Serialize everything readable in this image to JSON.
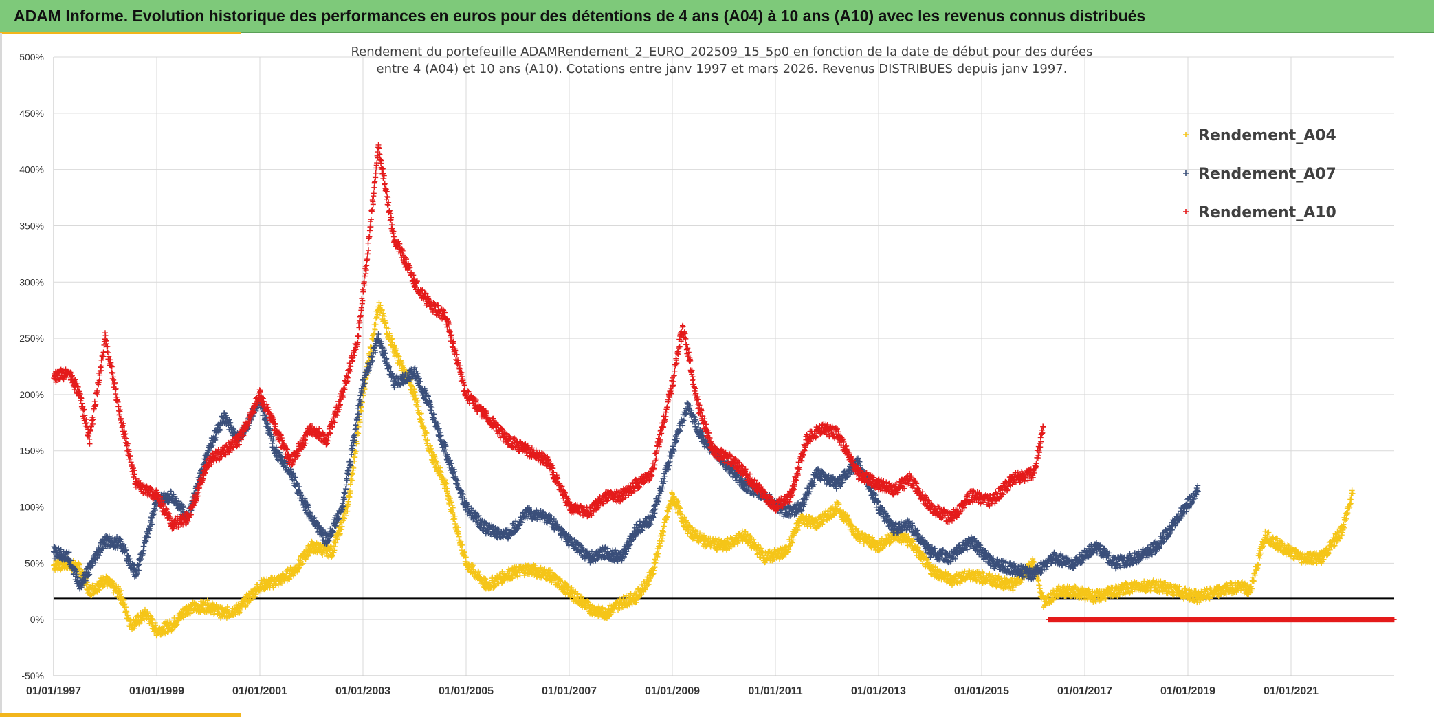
{
  "header": {
    "title": "ADAM Informe. Evolution historique des performances en euros pour des détentions de 4 ans (A04) à 10 ans (A10) avec les revenus connus distribués"
  },
  "chart_data": {
    "type": "scatter",
    "title_lines": [
      "Rendement du portefeuille ADAMRendement_2_EURO_202509_15_5p0  en fonction de la date de début pour des durées",
      "entre 4 (A04) et 10 ans (A10). Cotations entre janv 1997 et mars 2026. Revenus DISTRIBUES depuis janv 1997."
    ],
    "xlabel": "",
    "ylabel": "",
    "xlim": [
      1997.0,
      2023.0
    ],
    "ylim": [
      -50,
      500
    ],
    "y_ticks": [
      -50,
      0,
      50,
      100,
      150,
      200,
      250,
      300,
      350,
      400,
      450,
      500
    ],
    "y_tick_suffix": "%",
    "x_ticks": [
      {
        "value": 1997,
        "label": "01/01/1997"
      },
      {
        "value": 1999,
        "label": "01/01/1999"
      },
      {
        "value": 2001,
        "label": "01/01/2001"
      },
      {
        "value": 2003,
        "label": "01/01/2003"
      },
      {
        "value": 2005,
        "label": "01/01/2005"
      },
      {
        "value": 2007,
        "label": "01/01/2007"
      },
      {
        "value": 2009,
        "label": "01/01/2009"
      },
      {
        "value": 2011,
        "label": "01/01/2011"
      },
      {
        "value": 2013,
        "label": "01/01/2013"
      },
      {
        "value": 2015,
        "label": "01/01/2015"
      },
      {
        "value": 2017,
        "label": "01/01/2017"
      },
      {
        "value": 2019,
        "label": "01/01/2019"
      },
      {
        "value": 2021,
        "label": "01/01/2021"
      }
    ],
    "grid": true,
    "reference_line": {
      "y": 18.5,
      "color": "#000000"
    },
    "legend_position": "top-right",
    "series": [
      {
        "name": "Rendement_A04",
        "color": "#f5c518",
        "x": [
          1997.0,
          1997.3,
          1997.5,
          1997.7,
          1998.0,
          1998.3,
          1998.5,
          1998.8,
          1999.0,
          1999.3,
          1999.6,
          2000.0,
          2000.3,
          2000.6,
          2001.0,
          2001.4,
          2001.7,
          2002.0,
          2002.4,
          2002.7,
          2003.0,
          2003.3,
          2003.6,
          2004.0,
          2004.3,
          2004.6,
          2005.0,
          2005.4,
          2005.8,
          2006.2,
          2006.6,
          2007.0,
          2007.4,
          2007.7,
          2008.0,
          2008.3,
          2008.6,
          2009.0,
          2009.3,
          2009.6,
          2010.0,
          2010.4,
          2010.8,
          2011.2,
          2011.5,
          2011.8,
          2012.2,
          2012.6,
          2013.0,
          2013.3,
          2013.6,
          2014.0,
          2014.4,
          2014.8,
          2015.2,
          2015.6,
          2016.0,
          2016.2,
          2016.5,
          2016.8,
          2017.2,
          2017.6,
          2018.0,
          2018.4,
          2018.8,
          2019.2,
          2019.6,
          2020.0,
          2020.2,
          2020.5,
          2020.8,
          2021.2,
          2021.6,
          2022.0,
          2022.2
        ],
        "y": [
          48,
          50,
          45,
          25,
          35,
          22,
          -5,
          5,
          -10,
          -5,
          10,
          12,
          5,
          10,
          30,
          35,
          45,
          65,
          60,
          100,
          200,
          280,
          240,
          200,
          150,
          120,
          50,
          30,
          40,
          45,
          40,
          25,
          10,
          5,
          15,
          20,
          40,
          110,
          80,
          70,
          65,
          75,
          55,
          60,
          90,
          85,
          100,
          75,
          65,
          75,
          70,
          45,
          35,
          40,
          35,
          30,
          50,
          15,
          25,
          25,
          20,
          25,
          30,
          30,
          25,
          20,
          25,
          30,
          25,
          75,
          65,
          55,
          55,
          80,
          115
        ]
      },
      {
        "name": "Rendement_A07",
        "color": "#3a4f7a",
        "x": [
          1997.0,
          1997.3,
          1997.5,
          1997.7,
          1998.0,
          1998.3,
          1998.6,
          1999.0,
          1999.3,
          1999.6,
          2000.0,
          2000.3,
          2000.6,
          2001.0,
          2001.3,
          2001.6,
          2002.0,
          2002.3,
          2002.6,
          2003.0,
          2003.3,
          2003.6,
          2004.0,
          2004.3,
          2004.6,
          2005.0,
          2005.4,
          2005.8,
          2006.2,
          2006.6,
          2007.0,
          2007.4,
          2007.7,
          2008.0,
          2008.3,
          2008.6,
          2009.0,
          2009.3,
          2009.6,
          2010.0,
          2010.4,
          2010.8,
          2011.2,
          2011.5,
          2011.8,
          2012.2,
          2012.6,
          2013.0,
          2013.3,
          2013.6,
          2014.0,
          2014.4,
          2014.8,
          2015.2,
          2015.6,
          2016.0,
          2016.4,
          2016.8,
          2017.2,
          2017.6,
          2018.0,
          2018.4,
          2018.8,
          2019.2
        ],
        "y": [
          60,
          55,
          30,
          45,
          70,
          68,
          40,
          105,
          110,
          90,
          150,
          180,
          160,
          195,
          150,
          130,
          90,
          70,
          100,
          210,
          250,
          210,
          220,
          190,
          150,
          100,
          80,
          75,
          95,
          90,
          70,
          55,
          60,
          55,
          80,
          90,
          150,
          190,
          160,
          140,
          120,
          110,
          95,
          100,
          130,
          120,
          140,
          100,
          80,
          85,
          60,
          55,
          70,
          50,
          45,
          40,
          55,
          50,
          65,
          50,
          55,
          65,
          90,
          115
        ]
      },
      {
        "name": "Rendement_A10",
        "color": "#e41b1b",
        "x": [
          1997.0,
          1997.3,
          1997.5,
          1997.7,
          1998.0,
          1998.3,
          1998.6,
          1999.0,
          1999.3,
          1999.6,
          2000.0,
          2000.3,
          2000.6,
          2001.0,
          2001.3,
          2001.6,
          2002.0,
          2002.3,
          2002.6,
          2002.9,
          2003.1,
          2003.3,
          2003.6,
          2004.0,
          2004.3,
          2004.6,
          2005.0,
          2005.4,
          2005.8,
          2006.2,
          2006.6,
          2007.0,
          2007.4,
          2007.7,
          2008.0,
          2008.3,
          2008.6,
          2009.0,
          2009.2,
          2009.5,
          2009.8,
          2010.2,
          2010.6,
          2011.0,
          2011.3,
          2011.6,
          2011.9,
          2012.2,
          2012.6,
          2013.0,
          2013.3,
          2013.6,
          2014.0,
          2014.4,
          2014.8,
          2015.2,
          2015.6,
          2016.0,
          2016.2
        ],
        "y": [
          215,
          220,
          200,
          160,
          250,
          180,
          120,
          110,
          85,
          90,
          140,
          150,
          160,
          200,
          170,
          140,
          170,
          160,
          200,
          250,
          330,
          420,
          340,
          300,
          280,
          270,
          200,
          180,
          160,
          150,
          140,
          100,
          95,
          110,
          110,
          120,
          130,
          210,
          260,
          190,
          150,
          140,
          120,
          100,
          110,
          160,
          170,
          165,
          130,
          120,
          115,
          125,
          100,
          90,
          110,
          105,
          125,
          130,
          170
        ]
      }
    ]
  }
}
